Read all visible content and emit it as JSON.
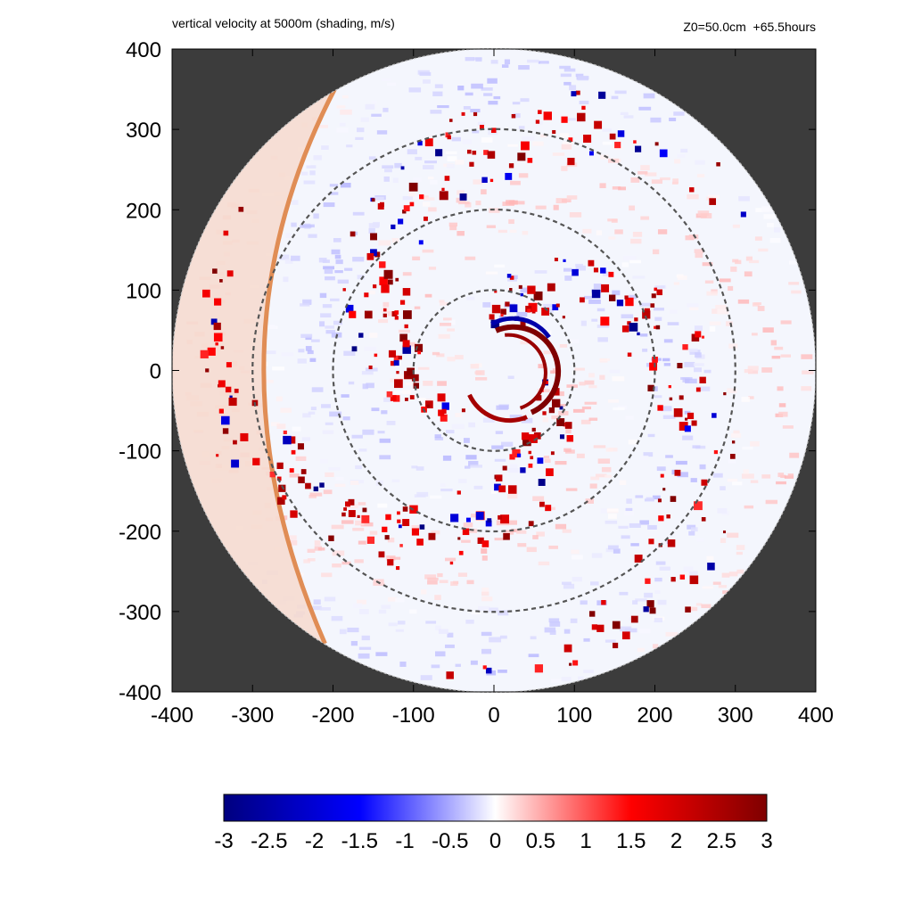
{
  "header": {
    "title": "vertical velocity at 5000m (shading, m/s)",
    "info": "Z0=50.0cm  +65.5hours"
  },
  "chart_data": {
    "type": "heatmap",
    "title": "vertical velocity at 5000m (shading, m/s)",
    "annotation": "Z0=50.0cm  +65.5hours",
    "variable": "vertical velocity at 5000m",
    "units": "m/s",
    "xlim": [
      -400,
      400
    ],
    "ylim": [
      -400,
      400
    ],
    "x_ticks": [
      -400,
      -300,
      -200,
      -100,
      0,
      100,
      200,
      300,
      400
    ],
    "y_ticks": [
      -400,
      -300,
      -200,
      -100,
      0,
      100,
      200,
      300,
      400
    ],
    "x_tick_labels": [
      "-400",
      "-300",
      "-200",
      "-100",
      "0",
      "100",
      "200",
      "300",
      "400"
    ],
    "y_tick_labels": [
      "400",
      "300",
      "200",
      "100",
      "0",
      "-100",
      "-200",
      "-300",
      "-400"
    ],
    "domain_radius": 400,
    "range_rings": [
      100,
      200,
      300
    ],
    "colorbar": {
      "min": -3,
      "max": 3,
      "ticks": [
        -3,
        -2.5,
        -2,
        -1.5,
        -1,
        -0.5,
        0,
        0.5,
        1,
        1.5,
        2,
        2.5,
        3
      ],
      "tick_labels": [
        "-3",
        "-2.5",
        "-2",
        "-1.5",
        "-1",
        "-0.5",
        "0",
        "0.5",
        "1",
        "1.5",
        "2",
        "2.5",
        "3"
      ],
      "colors": [
        "#00007f",
        "#0000ff",
        "#ffffff",
        "#ff0000",
        "#7f0000"
      ]
    },
    "eyewall": {
      "center": [
        30,
        0
      ],
      "radius": 55,
      "updraft_max": 3,
      "downdraft_min": -2.5
    },
    "background_color": "#3c3c3c"
  }
}
